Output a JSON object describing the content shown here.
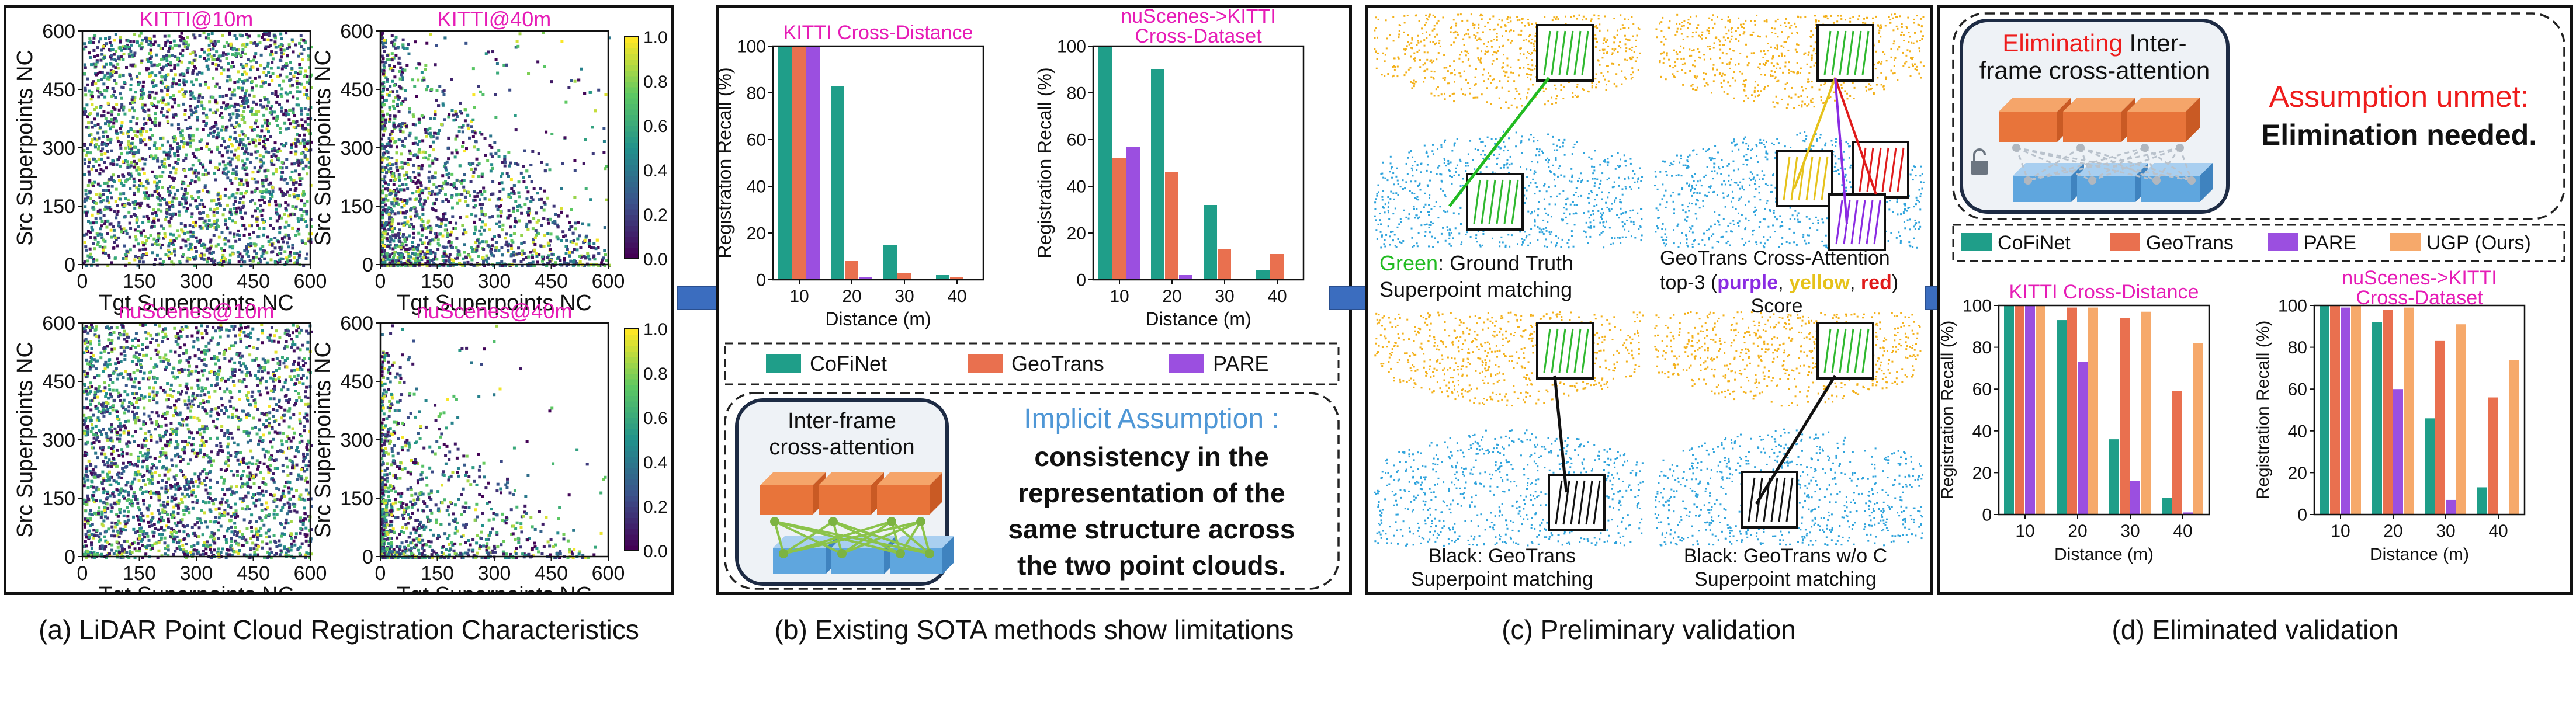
{
  "colors": {
    "cofinet": "#1f9e89",
    "geotrans": "#e9704f",
    "pare": "#9b4fe0",
    "ugp": "#f6a96b",
    "title_pink": "#e61cb6",
    "implicit_blue": "#4f97d6",
    "unmet_red": "#ee1c1c",
    "cloud_orange": "#f3b019",
    "cloud_blue": "#2ea3dc",
    "arrow_blue": "#3b6dbf"
  },
  "panel_a": {
    "caption": "(a) LiDAR Point Cloud Registration Characteristics",
    "plots": [
      {
        "title": "KITTI@10m",
        "xlabel": "Tgt Superpoints NC",
        "ylabel": "Src Superpoints NC"
      },
      {
        "title": "KITTI@40m",
        "xlabel": "Tgt Superpoints NC",
        "ylabel": "Src Superpoints NC"
      },
      {
        "title": "nuScenes@10m",
        "xlabel": "Tgt Superpoints NC",
        "ylabel": "Src Superpoints NC"
      },
      {
        "title": "nuScenes@40m",
        "xlabel": "Tgt Superpoints NC",
        "ylabel": "Src Superpoints NC"
      }
    ],
    "ticks": [
      "0",
      "150",
      "300",
      "450",
      "600"
    ],
    "colorbar_ticks": [
      "0.0",
      "0.2",
      "0.4",
      "0.6",
      "0.8",
      "1.0"
    ]
  },
  "panel_b": {
    "caption": "(b) Existing SOTA methods show limitations",
    "legend": [
      "CoFiNet",
      "GeoTrans",
      "PARE"
    ],
    "box_title": "Inter-frame cross-attention",
    "assumption_label": "Implicit Assumption :",
    "assumption_text": "consistency in the representation of the same structure across the two point clouds."
  },
  "panel_c": {
    "caption": "(c) Preliminary validation",
    "tl_label_color": "Green",
    "tl_label_rest": ": Ground Truth",
    "tl_label_line2": "Superpoint matching",
    "tr_label_line1": "GeoTrans Cross-Attention",
    "tr_label_prefix": "top-3 (",
    "tr_purple": "purple",
    "tr_sep1": ", ",
    "tr_yellow": "yellow",
    "tr_sep2": ", ",
    "tr_red": "red",
    "tr_suffix": ")",
    "tr_label_line3": "Score",
    "bl_label_line1": "Black: GeoTrans",
    "bl_label_line2": "Superpoint matching",
    "br_label_line1": "Black: GeoTrans w/o C",
    "br_label_line2": "Superpoint matching"
  },
  "panel_d": {
    "caption": "(d) Eliminated validation",
    "box_title_red": "Eliminating",
    "box_title_rest": " Inter-",
    "box_title_line2": "frame cross-attention",
    "unmet_label": "Assumption unmet:",
    "unmet_text": "Elimination needed.",
    "legend": [
      "CoFiNet",
      "GeoTrans",
      "PARE",
      "UGP (Ours)"
    ]
  },
  "chart_data": [
    {
      "type": "bar",
      "title": "KITTI Cross-Distance",
      "xlabel": "Distance (m)",
      "ylabel": "Registration Recall (%)",
      "categories": [
        "10",
        "20",
        "30",
        "40"
      ],
      "ylim": [
        0,
        100
      ],
      "yticks": [
        "0",
        "20",
        "40",
        "60",
        "80",
        "100"
      ],
      "series": [
        {
          "name": "CoFiNet",
          "values": [
            100,
            83,
            15,
            2
          ]
        },
        {
          "name": "GeoTrans",
          "values": [
            100,
            8,
            3,
            1
          ]
        },
        {
          "name": "PARE",
          "values": [
            100,
            1,
            0,
            0
          ]
        }
      ]
    },
    {
      "type": "bar",
      "title": "nuScenes->KITTI Cross-Dataset",
      "xlabel": "Distance (m)",
      "ylabel": "Registration Recall (%)",
      "categories": [
        "10",
        "20",
        "30",
        "40"
      ],
      "ylim": [
        0,
        100
      ],
      "yticks": [
        "0",
        "20",
        "40",
        "60",
        "80",
        "100"
      ],
      "series": [
        {
          "name": "CoFiNet",
          "values": [
            100,
            90,
            32,
            4
          ]
        },
        {
          "name": "GeoTrans",
          "values": [
            52,
            46,
            13,
            11
          ]
        },
        {
          "name": "PARE",
          "values": [
            57,
            2,
            0,
            0
          ]
        }
      ]
    },
    {
      "type": "bar",
      "title": "KITTI Cross-Distance",
      "xlabel": "Distance (m)",
      "ylabel": "Registration Recall (%)",
      "categories": [
        "10",
        "20",
        "30",
        "40"
      ],
      "ylim": [
        0,
        100
      ],
      "yticks": [
        "0",
        "20",
        "40",
        "60",
        "80",
        "100"
      ],
      "series": [
        {
          "name": "CoFiNet",
          "values": [
            100,
            93,
            36,
            8
          ]
        },
        {
          "name": "GeoTrans",
          "values": [
            100,
            99,
            94,
            59
          ]
        },
        {
          "name": "PARE",
          "values": [
            100,
            73,
            16,
            1
          ]
        },
        {
          "name": "UGP (Ours)",
          "values": [
            100,
            99,
            97,
            82
          ]
        }
      ]
    },
    {
      "type": "bar",
      "title": "nuScenes->KITTI Cross-Dataset",
      "xlabel": "Distance (m)",
      "ylabel": "Registration Recall (%)",
      "categories": [
        "10",
        "20",
        "30",
        "40"
      ],
      "ylim": [
        0,
        100
      ],
      "yticks": [
        "0",
        "20",
        "40",
        "60",
        "80",
        "100"
      ],
      "series": [
        {
          "name": "CoFiNet",
          "values": [
            100,
            92,
            46,
            13
          ]
        },
        {
          "name": "GeoTrans",
          "values": [
            100,
            98,
            83,
            56
          ]
        },
        {
          "name": "PARE",
          "values": [
            99,
            60,
            7,
            0
          ]
        },
        {
          "name": "UGP (Ours)",
          "values": [
            100,
            99,
            91,
            74
          ]
        }
      ]
    }
  ]
}
